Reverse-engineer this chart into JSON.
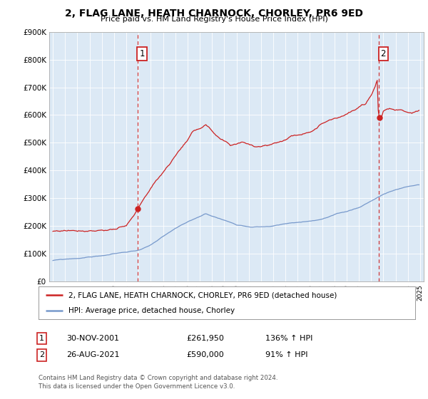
{
  "title": "2, FLAG LANE, HEATH CHARNOCK, CHORLEY, PR6 9ED",
  "subtitle": "Price paid vs. HM Land Registry's House Price Index (HPI)",
  "background_color": "#ffffff",
  "plot_bg_color": "#dce9f5",
  "red_line_color": "#cc2222",
  "blue_line_color": "#7799cc",
  "dashed_vline_color": "#cc2222",
  "sale1_date": 2001.917,
  "sale1_price": 261950,
  "sale2_date": 2021.625,
  "sale2_price": 590000,
  "ylim": [
    0,
    900000
  ],
  "xlim": [
    1994.7,
    2025.3
  ],
  "yticks": [
    0,
    100000,
    200000,
    300000,
    400000,
    500000,
    600000,
    700000,
    800000,
    900000
  ],
  "ytick_labels": [
    "£0",
    "£100K",
    "£200K",
    "£300K",
    "£400K",
    "£500K",
    "£600K",
    "£700K",
    "£800K",
    "£900K"
  ],
  "xticks": [
    1995,
    1996,
    1997,
    1998,
    1999,
    2000,
    2001,
    2002,
    2003,
    2004,
    2005,
    2006,
    2007,
    2008,
    2009,
    2010,
    2011,
    2012,
    2013,
    2014,
    2015,
    2016,
    2017,
    2018,
    2019,
    2020,
    2021,
    2022,
    2023,
    2024,
    2025
  ],
  "legend_red": "2, FLAG LANE, HEATH CHARNOCK, CHORLEY, PR6 9ED (detached house)",
  "legend_blue": "HPI: Average price, detached house, Chorley",
  "table_row1_num": "1",
  "table_row1_date": "30-NOV-2001",
  "table_row1_price": "£261,950",
  "table_row1_hpi": "136% ↑ HPI",
  "table_row2_num": "2",
  "table_row2_date": "26-AUG-2021",
  "table_row2_price": "£590,000",
  "table_row2_hpi": "91% ↑ HPI",
  "footnote1": "Contains HM Land Registry data © Crown copyright and database right 2024.",
  "footnote2": "This data is licensed under the Open Government Licence v3.0."
}
